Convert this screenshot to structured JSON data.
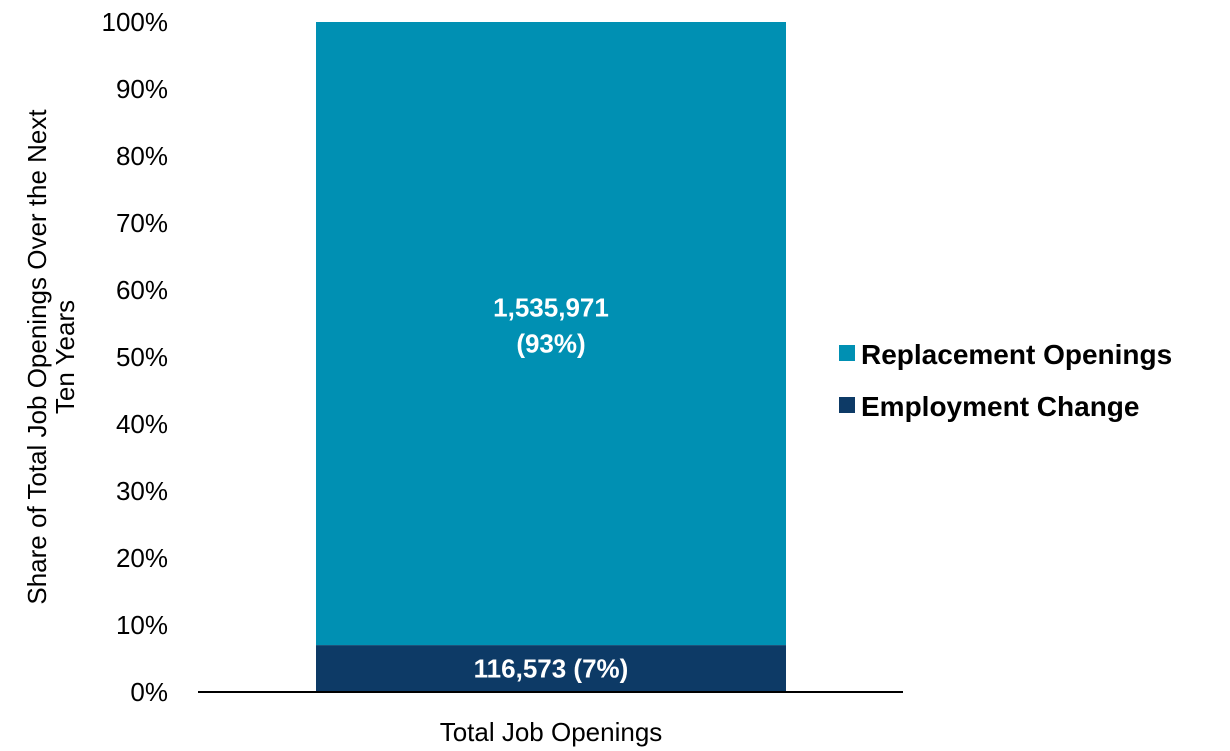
{
  "chart_data": {
    "type": "bar",
    "stacked": true,
    "categories": [
      "Total Job Openings"
    ],
    "series": [
      {
        "name": "Employment Change",
        "values": [
          7
        ],
        "color": "#0d3a66",
        "data_label_line1": "116,573 (7%)",
        "data_label_line2": ""
      },
      {
        "name": "Replacement Openings",
        "values": [
          93
        ],
        "color": "#0090b3",
        "data_label_line1": "1,535,971",
        "data_label_line2": "(93%)"
      }
    ],
    "ylabel_line1": "Share of Total Job Openings Over the Next",
    "ylabel_line2": "Ten Years",
    "ylim": [
      0,
      100
    ],
    "yticks": [
      "0%",
      "10%",
      "20%",
      "30%",
      "40%",
      "50%",
      "60%",
      "70%",
      "80%",
      "90%",
      "100%"
    ],
    "legend": {
      "position": "right",
      "entries": [
        "Replacement Openings",
        "Employment Change"
      ]
    },
    "grid": false
  }
}
